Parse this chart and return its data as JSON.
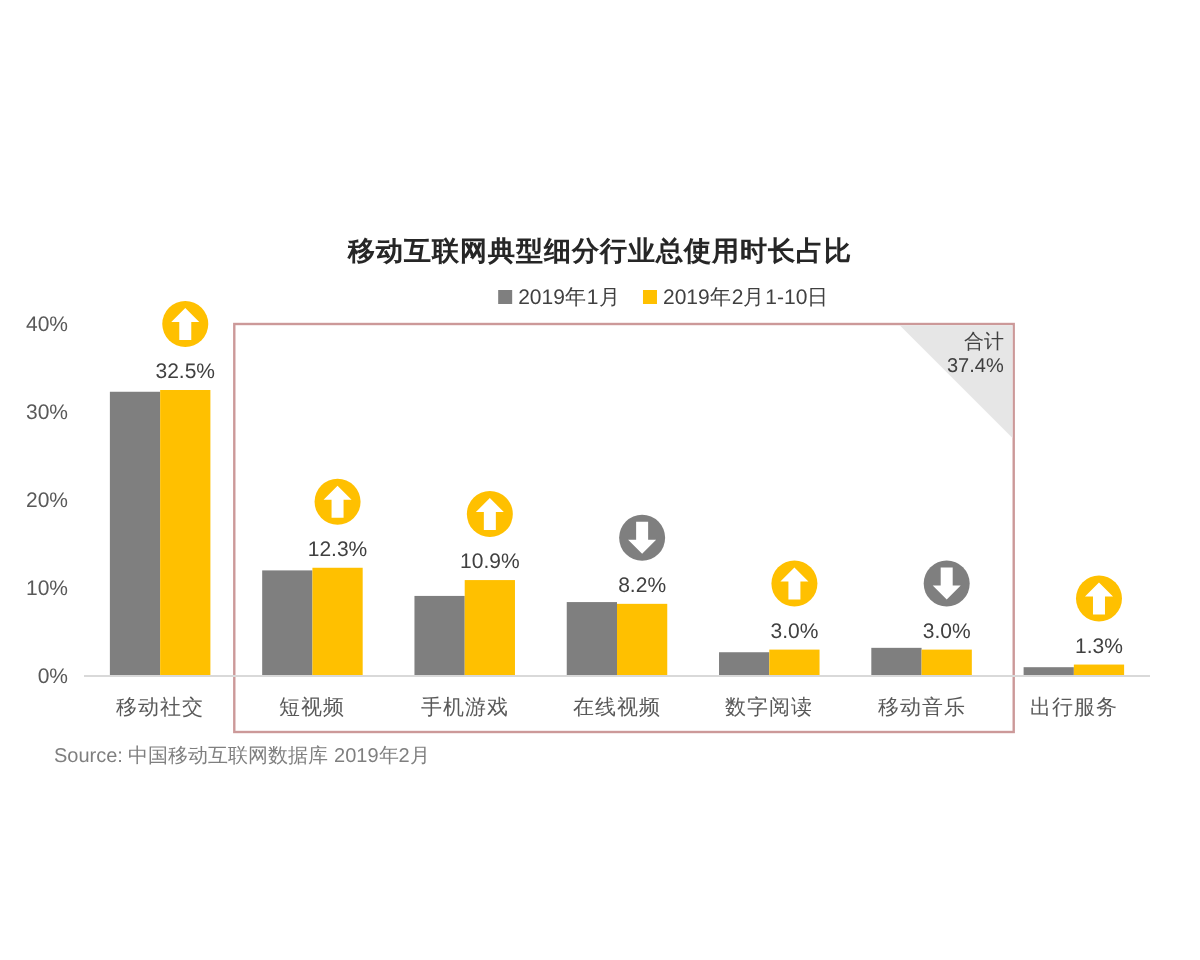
{
  "chart_data": {
    "type": "bar",
    "title": "移动互联网典型细分行业总使用时长占比",
    "categories": [
      "移动社交",
      "短视频",
      "手机游戏",
      "在线视频",
      "数字阅读",
      "移动音乐",
      "出行服务"
    ],
    "series": [
      {
        "name": "2019年1月",
        "color": "#7f7f7f",
        "values": [
          32.3,
          12.0,
          9.1,
          8.4,
          2.7,
          3.2,
          1.0
        ]
      },
      {
        "name": "2019年2月1-10日",
        "color": "#ffc000",
        "values": [
          32.5,
          12.3,
          10.9,
          8.2,
          3.0,
          3.0,
          1.3
        ],
        "value_labels": [
          "32.5%",
          "12.3%",
          "10.9%",
          "8.2%",
          "3.0%",
          "3.0%",
          "1.3%"
        ]
      }
    ],
    "ylim": [
      0,
      40
    ],
    "yticks": [
      {
        "value": 0,
        "label": "0%"
      },
      {
        "value": 10,
        "label": "10%"
      },
      {
        "value": 20,
        "label": "20%"
      },
      {
        "value": 30,
        "label": "30%"
      },
      {
        "value": 40,
        "label": "40%"
      }
    ],
    "legend": "top",
    "annotations": [
      "合计 37.4%",
      "Source: 中国移动互联网数据库 2019年2月"
    ]
  }
}
